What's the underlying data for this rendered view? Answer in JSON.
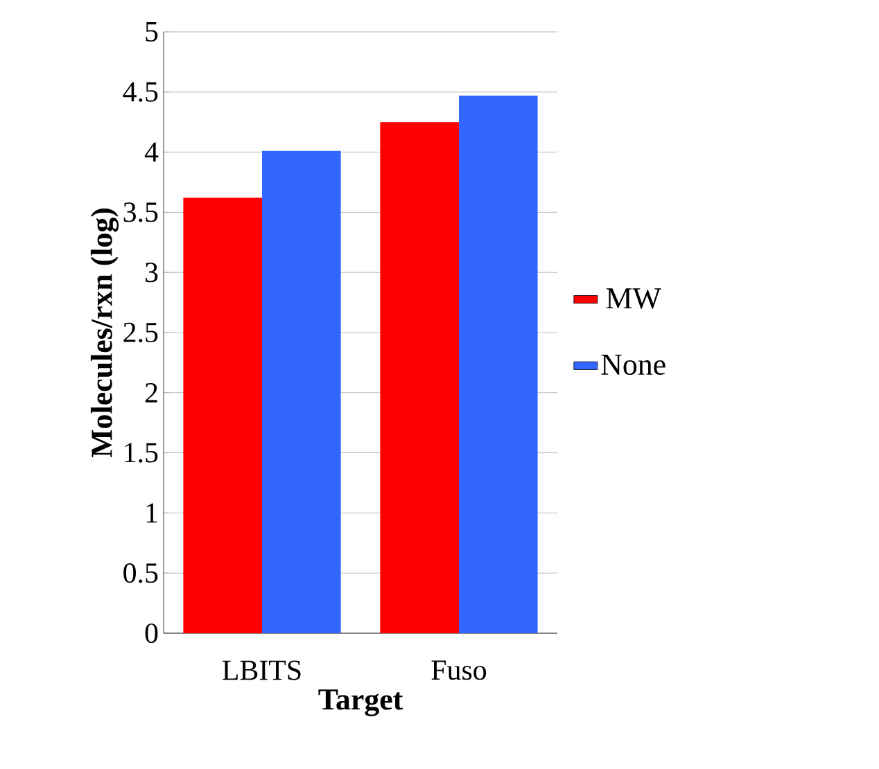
{
  "chart_data": {
    "type": "bar",
    "xlabel": "Target",
    "ylabel": "Molecules/rxn (log)",
    "categories": [
      "LBITS",
      "Fuso"
    ],
    "series": [
      {
        "name": "MW",
        "color": "#ff0000",
        "values": [
          3.62,
          4.25
        ]
      },
      {
        "name": "None",
        "color": "#3366ff",
        "values": [
          4.01,
          4.47
        ]
      }
    ],
    "ylim": [
      0,
      5
    ],
    "yticks": [
      0,
      0.5,
      1,
      1.5,
      2,
      2.5,
      3,
      3.5,
      4,
      4.5,
      5
    ],
    "grid": "y",
    "legend": "right"
  }
}
